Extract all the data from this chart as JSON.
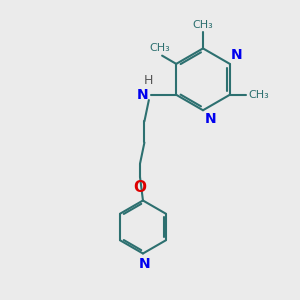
{
  "bg_color": "#ebebeb",
  "bond_color": "#2d7070",
  "n_color": "#0000ee",
  "o_color": "#dd0000",
  "h_color": "#555555",
  "line_width": 1.5,
  "font_size": 10,
  "fig_size": [
    3.0,
    3.0
  ],
  "dpi": 100,
  "xlim": [
    0,
    10
  ],
  "ylim": [
    0,
    10
  ]
}
